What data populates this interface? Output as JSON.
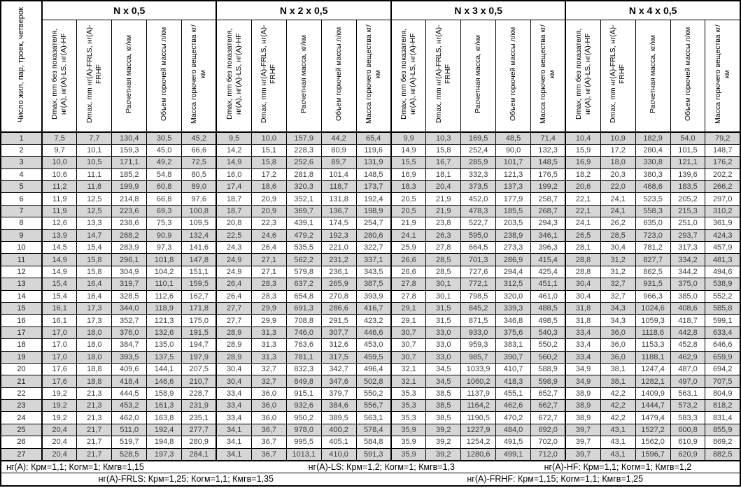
{
  "header": {
    "row_label_header": "Число жил, пар, троек, четверок",
    "groups": [
      {
        "label": "N x 0,5"
      },
      {
        "label": "N x 2 x 0,5"
      },
      {
        "label": "N x 3 x 0,5"
      },
      {
        "label": "N x 4 x 0,5"
      }
    ],
    "subcolumns": [
      "Dmax, mm без показателя, нг(A), нг(A)-LS, нг(A)-HF",
      "Dmax, mm нг(A)-FRLS, нг(A)-FRHF",
      "Расчетная масса, кг/км",
      "Объем горючей массы л/км",
      "Масса горючего вещества кг/км"
    ]
  },
  "rows": [
    {
      "n": "1",
      "values": [
        "7,5",
        "7,7",
        "130,4",
        "30,5",
        "45,2",
        "9,5",
        "10,0",
        "157,9",
        "44,2",
        "65,4",
        "9,9",
        "10,3",
        "169,5",
        "48,5",
        "71,4",
        "10,4",
        "10,9",
        "182,9",
        "54,0",
        "79,2"
      ]
    },
    {
      "n": "2",
      "values": [
        "9,7",
        "10,1",
        "159,3",
        "45,0",
        "66,6",
        "14,2",
        "15,1",
        "228,3",
        "80,9",
        "119,6",
        "14,9",
        "15,8",
        "252,4",
        "90,0",
        "132,3",
        "15,9",
        "17,2",
        "280,4",
        "101,5",
        "148,7"
      ]
    },
    {
      "n": "3",
      "values": [
        "10,0",
        "10,5",
        "171,1",
        "49,2",
        "72,5",
        "14,9",
        "15,8",
        "252,6",
        "89,7",
        "131,9",
        "15,5",
        "16,7",
        "285,9",
        "101,7",
        "148,5",
        "16,9",
        "18,0",
        "330,8",
        "121,1",
        "176,2"
      ]
    },
    {
      "n": "4",
      "values": [
        "10,6",
        "11,1",
        "185,2",
        "54,8",
        "80,5",
        "16,0",
        "17,2",
        "281,8",
        "101,4",
        "148,5",
        "16,9",
        "18,1",
        "332,3",
        "121,3",
        "176,5",
        "18,2",
        "20,3",
        "380,3",
        "139,6",
        "202,2"
      ]
    },
    {
      "n": "5",
      "values": [
        "11,2",
        "11,8",
        "199,9",
        "60,8",
        "89,0",
        "17,4",
        "18,6",
        "320,3",
        "118,7",
        "173,7",
        "18,3",
        "20,4",
        "373,5",
        "137,3",
        "199,2",
        "20,6",
        "22,0",
        "468,6",
        "183,5",
        "266,2"
      ]
    },
    {
      "n": "6",
      "values": [
        "11,9",
        "12,5",
        "214,8",
        "66,8",
        "97,6",
        "18,7",
        "20,9",
        "352,1",
        "131,8",
        "192,4",
        "20,5",
        "21,9",
        "452,0",
        "177,9",
        "258,7",
        "22,1",
        "24,1",
        "523,5",
        "205,2",
        "297,0"
      ]
    },
    {
      "n": "7",
      "values": [
        "11,9",
        "12,5",
        "223,6",
        "69,3",
        "100,8",
        "18,7",
        "20,9",
        "369,7",
        "136,7",
        "198,9",
        "20,5",
        "21,9",
        "478,3",
        "185,5",
        "268,7",
        "22,1",
        "24,1",
        "558,3",
        "215,3",
        "310,2"
      ]
    },
    {
      "n": "8",
      "values": [
        "12,6",
        "13,3",
        "238,6",
        "75,3",
        "109,5",
        "20,8",
        "22,3",
        "439,1",
        "174,5",
        "254,7",
        "21,9",
        "23,8",
        "522,7",
        "203,5",
        "294,3",
        "24,1",
        "26,2",
        "635,0",
        "251,0",
        "361,9"
      ]
    },
    {
      "n": "9",
      "values": [
        "13,9",
        "14,7",
        "268,2",
        "90,9",
        "132,4",
        "22,5",
        "24,6",
        "479,2",
        "192,3",
        "280,6",
        "24,1",
        "26,3",
        "595,0",
        "238,9",
        "346,1",
        "26,5",
        "28,5",
        "723,0",
        "293,7",
        "424,3"
      ]
    },
    {
      "n": "10",
      "values": [
        "14,5",
        "15,4",
        "283,9",
        "97,3",
        "141,6",
        "24,3",
        "26,4",
        "535,5",
        "221,0",
        "322,7",
        "25,9",
        "27,8",
        "664,5",
        "273,3",
        "396,3",
        "28,1",
        "30,4",
        "781,2",
        "317,3",
        "457,9"
      ]
    },
    {
      "n": "11",
      "values": [
        "14,9",
        "15,8",
        "296,1",
        "101,8",
        "147,8",
        "24,9",
        "27,1",
        "562,2",
        "231,2",
        "337,1",
        "26,6",
        "28,5",
        "701,3",
        "286,9",
        "415,4",
        "28,8",
        "31,2",
        "827,7",
        "334,2",
        "481,3"
      ]
    },
    {
      "n": "12",
      "values": [
        "14,9",
        "15,8",
        "304,9",
        "104,2",
        "151,1",
        "24,9",
        "27,1",
        "579,8",
        "236,1",
        "343,5",
        "26,6",
        "28,5",
        "727,6",
        "294,4",
        "425,4",
        "28,8",
        "31,2",
        "862,5",
        "344,2",
        "494,6"
      ]
    },
    {
      "n": "13",
      "values": [
        "15,4",
        "16,4",
        "319,7",
        "110,1",
        "159,5",
        "26,4",
        "28,3",
        "637,2",
        "265,9",
        "387,5",
        "27,8",
        "30,1",
        "772,1",
        "312,5",
        "451,1",
        "30,4",
        "32,7",
        "931,5",
        "375,0",
        "538,9"
      ]
    },
    {
      "n": "14",
      "values": [
        "15,4",
        "16,4",
        "328,5",
        "112,6",
        "162,7",
        "26,4",
        "28,3",
        "654,8",
        "270,8",
        "393,9",
        "27,8",
        "30,1",
        "798,5",
        "320,0",
        "461,0",
        "30,4",
        "32,7",
        "966,3",
        "385,0",
        "552,2"
      ]
    },
    {
      "n": "15",
      "values": [
        "16,1",
        "17,3",
        "344,0",
        "118,9",
        "171,8",
        "27,7",
        "29,9",
        "691,3",
        "286,6",
        "416,7",
        "29,1",
        "31,5",
        "845,2",
        "339,3",
        "488,5",
        "31,8",
        "34,3",
        "1024,6",
        "408,6",
        "585,8"
      ]
    },
    {
      "n": "16",
      "values": [
        "16,1",
        "17,3",
        "352,7",
        "121,3",
        "175,0",
        "27,7",
        "29,9",
        "708,8",
        "291,5",
        "423,2",
        "29,1",
        "31,5",
        "871,5",
        "346,8",
        "498,5",
        "31,8",
        "34,3",
        "1059,3",
        "418,7",
        "599,1"
      ]
    },
    {
      "n": "17",
      "values": [
        "17,0",
        "18,0",
        "376,0",
        "132,6",
        "191,5",
        "28,9",
        "31,3",
        "746,0",
        "307,7",
        "446,6",
        "30,7",
        "33,0",
        "933,0",
        "375,6",
        "540,3",
        "33,4",
        "36,0",
        "1118,6",
        "442,8",
        "633,4"
      ]
    },
    {
      "n": "18",
      "values": [
        "17,0",
        "18,0",
        "384,7",
        "135,0",
        "194,7",
        "28,9",
        "31,3",
        "763,6",
        "312,6",
        "453,0",
        "30,7",
        "33,0",
        "959,3",
        "383,1",
        "550,2",
        "33,4",
        "36,0",
        "1153,3",
        "452,8",
        "646,6"
      ]
    },
    {
      "n": "19",
      "values": [
        "17,0",
        "18,0",
        "393,5",
        "137,5",
        "197,9",
        "28,9",
        "31,3",
        "781,1",
        "317,5",
        "459,5",
        "30,7",
        "33,0",
        "985,7",
        "390,7",
        "560,2",
        "33,4",
        "36,0",
        "1188,1",
        "462,9",
        "659,9"
      ]
    },
    {
      "n": "20",
      "values": [
        "17,6",
        "18,8",
        "409,6",
        "144,1",
        "207,5",
        "30,4",
        "32,7",
        "832,3",
        "342,7",
        "496,4",
        "32,1",
        "34,5",
        "1033,9",
        "410,7",
        "588,9",
        "34,9",
        "38,1",
        "1247,4",
        "487,0",
        "694,2"
      ]
    },
    {
      "n": "21",
      "values": [
        "17,6",
        "18,8",
        "418,4",
        "146,6",
        "210,7",
        "30,4",
        "32,7",
        "849,8",
        "347,6",
        "502,8",
        "32,1",
        "34,5",
        "1060,2",
        "418,3",
        "598,9",
        "34,9",
        "38,1",
        "1282,1",
        "497,0",
        "707,5"
      ]
    },
    {
      "n": "22",
      "values": [
        "19,2",
        "21,3",
        "444,5",
        "158,9",
        "228,7",
        "33,4",
        "36,0",
        "915,1",
        "379,7",
        "550,2",
        "35,3",
        "38,5",
        "1137,9",
        "455,1",
        "652,7",
        "38,9",
        "42,2",
        "1409,9",
        "563,1",
        "804,9"
      ]
    },
    {
      "n": "23",
      "values": [
        "19,2",
        "21,3",
        "453,2",
        "161,3",
        "231,9",
        "33,4",
        "36,0",
        "932,6",
        "384,6",
        "556,7",
        "35,3",
        "38,5",
        "1164,2",
        "462,6",
        "662,7",
        "38,9",
        "42,2",
        "1444,7",
        "573,2",
        "818,2"
      ]
    },
    {
      "n": "24",
      "values": [
        "19,2",
        "21,3",
        "462,0",
        "163,8",
        "235,1",
        "33,4",
        "36,0",
        "950,2",
        "389,5",
        "563,1",
        "35,3",
        "38,5",
        "1190,5",
        "470,2",
        "672,7",
        "38,9",
        "42,2",
        "1479,4",
        "583,3",
        "831,4"
      ]
    },
    {
      "n": "25",
      "values": [
        "20,4",
        "21,7",
        "511,0",
        "192,4",
        "277,7",
        "34,1",
        "36,7",
        "978,0",
        "400,2",
        "578,4",
        "35,9",
        "39,2",
        "1227,9",
        "484,0",
        "692,0",
        "39,7",
        "43,1",
        "1527,2",
        "600,8",
        "855,9"
      ]
    },
    {
      "n": "26",
      "values": [
        "20,4",
        "21,7",
        "519,7",
        "194,8",
        "280,9",
        "34,1",
        "36,7",
        "995,5",
        "405,1",
        "584,8",
        "35,9",
        "39,2",
        "1254,2",
        "491,5",
        "702,0",
        "39,7",
        "43,1",
        "1562,0",
        "610,9",
        "869,2"
      ]
    },
    {
      "n": "27",
      "values": [
        "20,4",
        "21,7",
        "528,5",
        "197,3",
        "284,1",
        "34,1",
        "36,7",
        "1013,1",
        "410,0",
        "591,3",
        "35,9",
        "39,2",
        "1280,6",
        "499,1",
        "712,0",
        "39,7",
        "43,1",
        "1596,7",
        "620,9",
        "882,5"
      ]
    }
  ],
  "footer": {
    "line1": [
      "нг(A): Крм=1,1;  Когм=1;  Кмгв=1,15",
      "нг(A)-LS: Крм=1,2;  Когм=1;  Кмгв=1,3",
      "нг(A)-HF: Крм=1,1;  Когм=1;  Кмгв=1,2"
    ],
    "line2": [
      "нг(A)-FRLS: Крм=1,25;  Когм=1,1;  Кмгв=1,35",
      "нг(A)-FRHF: Крм=1,15;  Когм=1,1;  Кмгв=1,25"
    ]
  },
  "colors": {
    "stripe_gray": "#d6d6d6",
    "border_black": "#000000",
    "data_text": "#3a3a3a"
  }
}
